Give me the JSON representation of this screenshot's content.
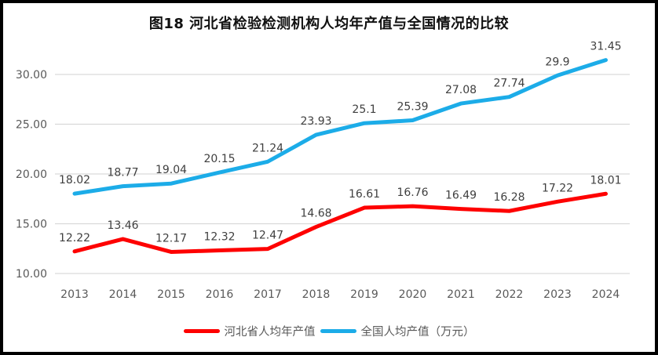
{
  "title": "图18 河北省检验检测机构人均年产值与全国情况的比较",
  "colors": {
    "hebei_red": "#FE0000",
    "national_blue": "#1CACE8",
    "gridline": "#D9D9D9",
    "axis_text": "#595959",
    "data_label_text": "#3F3F3F",
    "border": "#000000",
    "background": "#FFFFFF"
  },
  "chart_data": {
    "type": "line",
    "title": "图18 河北省检验检测机构人均年产值与全国情况的比较",
    "xlabel": "",
    "ylabel": "",
    "categories": [
      "2013",
      "2014",
      "2015",
      "2016",
      "2017",
      "2018",
      "2019",
      "2020",
      "2021",
      "2022",
      "2023",
      "2024"
    ],
    "series": [
      {
        "name": "河北省人均年产值",
        "color": "#FE0000",
        "values": [
          12.22,
          13.46,
          12.17,
          12.32,
          12.47,
          14.68,
          16.61,
          16.76,
          16.49,
          16.28,
          17.22,
          18.01
        ],
        "labels": [
          "12.22",
          "13.46",
          "12.17",
          "12.32",
          "12.47",
          "14.68",
          "16.61",
          "16.76",
          "16.49",
          "16.28",
          "17.22",
          "18.01"
        ]
      },
      {
        "name": "全国人均产值（万元）",
        "color": "#1CACE8",
        "values": [
          18.02,
          18.77,
          19.04,
          20.15,
          21.24,
          23.93,
          25.1,
          25.39,
          27.08,
          27.74,
          29.9,
          31.45
        ],
        "labels": [
          "18.02",
          "18.77",
          "19.04",
          "20.15",
          "21.24",
          "23.93",
          "25.1",
          "25.39",
          "27.08",
          "27.74",
          "29.9",
          "31.45"
        ]
      }
    ],
    "ylim": [
      10,
      32.5
    ],
    "yticks": [
      {
        "value": 10,
        "label": "10.00"
      },
      {
        "value": 15,
        "label": "15.00"
      },
      {
        "value": 20,
        "label": "20.00"
      },
      {
        "value": 25,
        "label": "25.00"
      },
      {
        "value": 30,
        "label": "30.00"
      }
    ],
    "grid": true,
    "legend_position": "bottom"
  }
}
